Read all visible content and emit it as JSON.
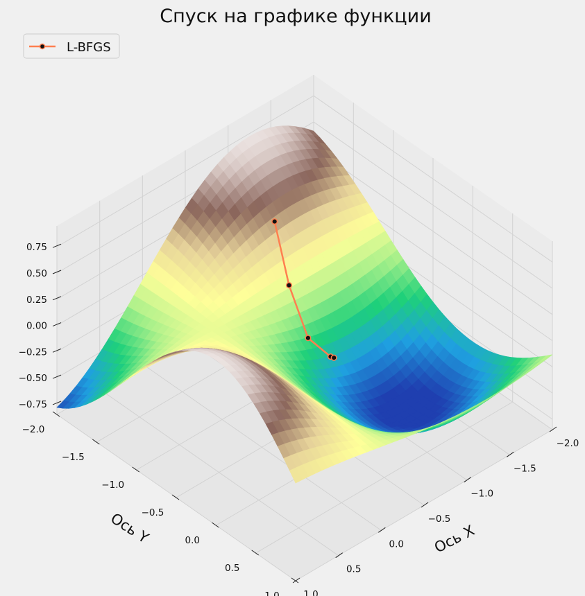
{
  "chart_data": {
    "type": "surface3d",
    "title": "Спуск на графике функции",
    "xlabel": "Ось X",
    "ylabel": "Ось Y",
    "xlim": [
      -2,
      1
    ],
    "ylim": [
      -2,
      1
    ],
    "zlim": [
      -0.85,
      0.95
    ],
    "x_ticks": [
      "−2.0",
      "−1.5",
      "−1.0",
      "−0.5",
      "0.0",
      "0.5",
      "1.0"
    ],
    "y_ticks": [
      "−2.0",
      "−1.5",
      "−1.0",
      "−0.5",
      "0.0",
      "0.5",
      "1.0"
    ],
    "z_ticks": [
      "−0.75",
      "−0.50",
      "−0.25",
      "0.00",
      "0.25",
      "0.50",
      "0.75"
    ],
    "grid": true,
    "legend_position": "top-left",
    "colormap": [
      "#1f3fb0",
      "#1fa0e0",
      "#1ed07a",
      "#a8f08a",
      "#ffff99",
      "#e6d29a",
      "#8a655b",
      "#d8c8c4",
      "#ffffff"
    ],
    "series": [
      {
        "name": "L-BFGS",
        "color": "#ff7f50",
        "marker_color": "#111111",
        "points": [
          {
            "x": -0.8,
            "y": -1.2,
            "z": 0.55
          },
          {
            "x": -0.55,
            "y": -0.75,
            "z": 0.3
          },
          {
            "x": -0.4,
            "y": -0.35,
            "z": 0.08
          },
          {
            "x": -0.45,
            "y": -0.12,
            "z": 0.0
          },
          {
            "x": -0.47,
            "y": -0.1,
            "z": -0.01
          }
        ]
      }
    ]
  }
}
